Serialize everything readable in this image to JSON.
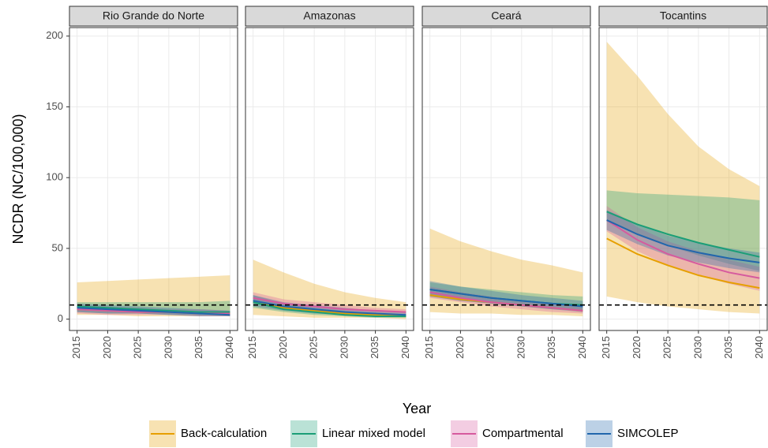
{
  "chart_data": [
    {
      "type": "line",
      "title": "Rio Grande do Norte",
      "y_label": "NCDR (NC/100,000)",
      "x_label": "Year",
      "x": [
        2015,
        2020,
        2025,
        2030,
        2035,
        2040
      ],
      "xlim": [
        2013.75,
        2041.25
      ],
      "xticks": [
        2015,
        2020,
        2025,
        2030,
        2035,
        2040
      ],
      "ylim": [
        -8,
        206
      ],
      "yticks": [
        0,
        50,
        100,
        150,
        200
      ],
      "grid": true,
      "reference_line": 10,
      "series": [
        {
          "name": "Back-calculation",
          "color": "#e69f00",
          "values": [
            7,
            6,
            5,
            5,
            4,
            4
          ],
          "lower": [
            3,
            3,
            2,
            2,
            2,
            2
          ],
          "upper": [
            26,
            27,
            28,
            29,
            30,
            31
          ]
        },
        {
          "name": "Linear mixed model",
          "color": "#1b9e77",
          "values": [
            9,
            8,
            7,
            6,
            5,
            5
          ],
          "lower": [
            5,
            4,
            4,
            3,
            3,
            3
          ],
          "upper": [
            12,
            12,
            12,
            12,
            12,
            13
          ]
        },
        {
          "name": "Compartmental",
          "color": "#d65a9e",
          "values": [
            7,
            6,
            5,
            5,
            4,
            4
          ],
          "lower": [
            4,
            3,
            3,
            3,
            2,
            2
          ],
          "upper": [
            10,
            9,
            8,
            7,
            7,
            6
          ]
        },
        {
          "name": "SIMCOLEP",
          "color": "#2166ac",
          "values": [
            8,
            7,
            6,
            5,
            4,
            3
          ],
          "lower": [
            5,
            4,
            4,
            3,
            2,
            2
          ],
          "upper": [
            11,
            10,
            9,
            8,
            7,
            6
          ]
        }
      ]
    },
    {
      "type": "line",
      "title": "Amazonas",
      "x": [
        2015,
        2020,
        2025,
        2030,
        2035,
        2040
      ],
      "xlim": [
        2013.75,
        2041.25
      ],
      "xticks": [
        2015,
        2020,
        2025,
        2030,
        2035,
        2040
      ],
      "ylim": [
        -8,
        206
      ],
      "yticks": [
        0,
        50,
        100,
        150,
        200
      ],
      "grid": true,
      "reference_line": 10,
      "series": [
        {
          "name": "Back-calculation",
          "color": "#e69f00",
          "values": [
            12,
            8,
            6,
            4,
            3,
            2
          ],
          "lower": [
            3,
            2,
            1,
            1,
            1,
            0
          ],
          "upper": [
            42,
            33,
            25,
            19,
            15,
            12
          ]
        },
        {
          "name": "Linear mixed model",
          "color": "#1b9e77",
          "values": [
            12,
            7,
            5,
            3,
            2,
            2
          ],
          "lower": [
            8,
            5,
            3,
            2,
            1,
            1
          ],
          "upper": [
            17,
            11,
            8,
            6,
            4,
            3
          ]
        },
        {
          "name": "Compartmental",
          "color": "#d65a9e",
          "values": [
            15,
            11,
            9,
            7,
            6,
            5
          ],
          "lower": [
            11,
            8,
            6,
            5,
            4,
            3
          ],
          "upper": [
            19,
            14,
            12,
            10,
            8,
            7
          ]
        },
        {
          "name": "SIMCOLEP",
          "color": "#2166ac",
          "values": [
            13,
            9,
            7,
            5,
            4,
            3
          ],
          "lower": [
            9,
            6,
            4,
            3,
            2,
            2
          ],
          "upper": [
            17,
            12,
            10,
            8,
            6,
            5
          ]
        }
      ]
    },
    {
      "type": "line",
      "title": "Ceará",
      "x": [
        2015,
        2020,
        2025,
        2030,
        2035,
        2040
      ],
      "xlim": [
        2013.75,
        2041.25
      ],
      "xticks": [
        2015,
        2020,
        2025,
        2030,
        2035,
        2040
      ],
      "ylim": [
        -8,
        206
      ],
      "yticks": [
        0,
        50,
        100,
        150,
        200
      ],
      "grid": true,
      "reference_line": 10,
      "series": [
        {
          "name": "Back-calculation",
          "color": "#e69f00",
          "values": [
            17,
            14,
            12,
            10,
            8,
            6
          ],
          "lower": [
            5,
            4,
            4,
            3,
            3,
            2
          ],
          "upper": [
            64,
            55,
            48,
            42,
            38,
            33
          ]
        },
        {
          "name": "Linear mixed model",
          "color": "#1b9e77",
          "values": [
            21,
            18,
            15,
            13,
            11,
            10
          ],
          "lower": [
            16,
            13,
            11,
            9,
            7,
            6
          ],
          "upper": [
            26,
            23,
            21,
            19,
            17,
            16
          ]
        },
        {
          "name": "Compartmental",
          "color": "#d65a9e",
          "values": [
            19,
            15,
            12,
            10,
            8,
            6
          ],
          "lower": [
            15,
            12,
            9,
            7,
            5,
            4
          ],
          "upper": [
            23,
            19,
            16,
            13,
            11,
            9
          ]
        },
        {
          "name": "SIMCOLEP",
          "color": "#2166ac",
          "values": [
            21,
            18,
            15,
            13,
            11,
            9
          ],
          "lower": [
            16,
            13,
            11,
            9,
            7,
            5
          ],
          "upper": [
            27,
            23,
            20,
            17,
            15,
            13
          ]
        }
      ]
    },
    {
      "type": "line",
      "title": "Tocantins",
      "x": [
        2015,
        2020,
        2025,
        2030,
        2035,
        2040
      ],
      "xlim": [
        2013.75,
        2041.25
      ],
      "xticks": [
        2015,
        2020,
        2025,
        2030,
        2035,
        2040
      ],
      "ylim": [
        -8,
        206
      ],
      "yticks": [
        0,
        50,
        100,
        150,
        200
      ],
      "grid": true,
      "reference_line": 10,
      "series": [
        {
          "name": "Back-calculation",
          "color": "#e69f00",
          "values": [
            57,
            46,
            38,
            31,
            26,
            22
          ],
          "lower": [
            16,
            12,
            9,
            7,
            5,
            4
          ],
          "upper": [
            196,
            172,
            145,
            122,
            106,
            94
          ]
        },
        {
          "name": "Linear mixed model",
          "color": "#1b9e77",
          "values": [
            76,
            67,
            60,
            54,
            49,
            44
          ],
          "lower": [
            70,
            60,
            52,
            45,
            39,
            34
          ],
          "upper": [
            91,
            89,
            88,
            87,
            86,
            84
          ]
        },
        {
          "name": "Compartmental",
          "color": "#d65a9e",
          "values": [
            70,
            56,
            46,
            39,
            33,
            29
          ],
          "lower": [
            62,
            48,
            38,
            31,
            25,
            20
          ],
          "upper": [
            80,
            65,
            55,
            48,
            42,
            37
          ]
        },
        {
          "name": "SIMCOLEP",
          "color": "#2166ac",
          "values": [
            70,
            60,
            52,
            47,
            43,
            40
          ],
          "lower": [
            63,
            53,
            45,
            40,
            36,
            33
          ],
          "upper": [
            77,
            67,
            59,
            54,
            50,
            47
          ]
        }
      ]
    }
  ]
}
